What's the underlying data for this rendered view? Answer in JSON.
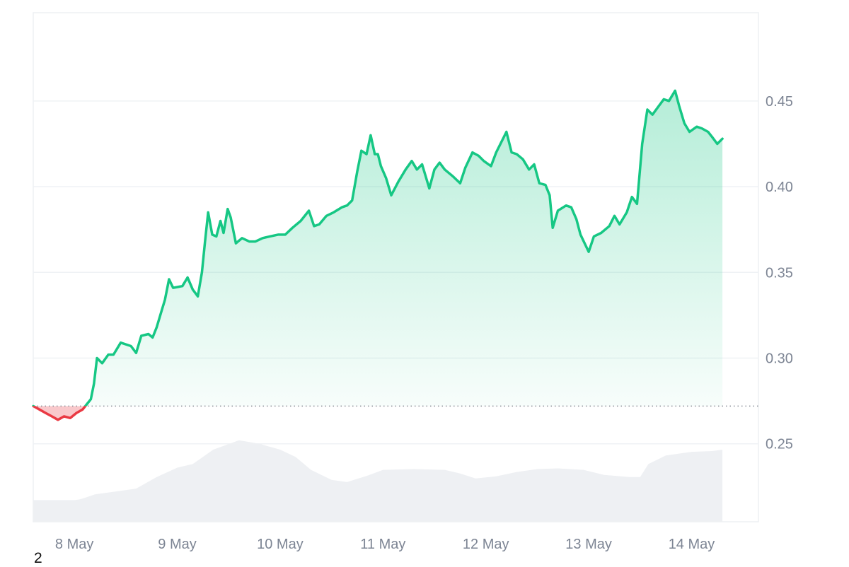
{
  "chart_data": {
    "type": "line",
    "baseline": 0.272,
    "ylim": [
      0.2045,
      0.5015
    ],
    "y_ticks": [
      0.25,
      0.3,
      0.35,
      0.4,
      0.45
    ],
    "y_tick_labels": [
      "0.25",
      "0.30",
      "0.35",
      "0.40",
      "0.45"
    ],
    "x_range": [
      7.6,
      14.65
    ],
    "x_ticks": [
      8,
      9,
      10,
      11,
      12,
      13,
      14
    ],
    "x_tick_labels": [
      "8 May",
      "9 May",
      "10 May",
      "11 May",
      "12 May",
      "13 May",
      "14 May"
    ],
    "colors": {
      "up": "#16c784",
      "down": "#ea3943",
      "volume": "#eef0f3",
      "grid": "#eff2f5",
      "tick": "#7d8594"
    },
    "series": [
      {
        "points": [
          [
            7.6,
            0.272
          ],
          [
            7.66,
            0.27
          ],
          [
            7.72,
            0.268
          ],
          [
            7.78,
            0.266
          ],
          [
            7.84,
            0.264
          ],
          [
            7.9,
            0.266
          ],
          [
            7.96,
            0.265
          ],
          [
            8.02,
            0.268
          ],
          [
            8.08,
            0.27
          ],
          [
            8.12,
            0.273
          ],
          [
            8.16,
            0.276
          ],
          [
            8.19,
            0.285
          ],
          [
            8.22,
            0.3
          ],
          [
            8.27,
            0.297
          ],
          [
            8.33,
            0.302
          ],
          [
            8.38,
            0.302
          ],
          [
            8.45,
            0.309
          ],
          [
            8.55,
            0.307
          ],
          [
            8.6,
            0.303
          ],
          [
            8.65,
            0.313
          ],
          [
            8.72,
            0.314
          ],
          [
            8.76,
            0.312
          ],
          [
            8.8,
            0.318
          ],
          [
            8.85,
            0.328
          ],
          [
            8.88,
            0.334
          ],
          [
            8.92,
            0.346
          ],
          [
            8.96,
            0.341
          ],
          [
            9.05,
            0.342
          ],
          [
            9.1,
            0.347
          ],
          [
            9.15,
            0.34
          ],
          [
            9.2,
            0.336
          ],
          [
            9.24,
            0.35
          ],
          [
            9.27,
            0.368
          ],
          [
            9.3,
            0.385
          ],
          [
            9.34,
            0.372
          ],
          [
            9.38,
            0.371
          ],
          [
            9.42,
            0.38
          ],
          [
            9.45,
            0.373
          ],
          [
            9.49,
            0.387
          ],
          [
            9.52,
            0.382
          ],
          [
            9.57,
            0.367
          ],
          [
            9.63,
            0.37
          ],
          [
            9.7,
            0.368
          ],
          [
            9.76,
            0.368
          ],
          [
            9.83,
            0.37
          ],
          [
            9.9,
            0.371
          ],
          [
            9.98,
            0.372
          ],
          [
            10.05,
            0.372
          ],
          [
            10.12,
            0.376
          ],
          [
            10.2,
            0.38
          ],
          [
            10.28,
            0.386
          ],
          [
            10.33,
            0.377
          ],
          [
            10.38,
            0.378
          ],
          [
            10.45,
            0.383
          ],
          [
            10.52,
            0.385
          ],
          [
            10.6,
            0.388
          ],
          [
            10.65,
            0.389
          ],
          [
            10.7,
            0.392
          ],
          [
            10.75,
            0.409
          ],
          [
            10.79,
            0.421
          ],
          [
            10.84,
            0.419
          ],
          [
            10.88,
            0.43
          ],
          [
            10.92,
            0.419
          ],
          [
            10.95,
            0.419
          ],
          [
            10.98,
            0.412
          ],
          [
            11.03,
            0.405
          ],
          [
            11.08,
            0.395
          ],
          [
            11.15,
            0.403
          ],
          [
            11.22,
            0.41
          ],
          [
            11.28,
            0.415
          ],
          [
            11.33,
            0.41
          ],
          [
            11.38,
            0.413
          ],
          [
            11.45,
            0.399
          ],
          [
            11.5,
            0.41
          ],
          [
            11.55,
            0.414
          ],
          [
            11.6,
            0.41
          ],
          [
            11.68,
            0.406
          ],
          [
            11.75,
            0.402
          ],
          [
            11.8,
            0.411
          ],
          [
            11.87,
            0.42
          ],
          [
            11.93,
            0.418
          ],
          [
            11.98,
            0.415
          ],
          [
            12.05,
            0.412
          ],
          [
            12.1,
            0.42
          ],
          [
            12.2,
            0.432
          ],
          [
            12.25,
            0.42
          ],
          [
            12.3,
            0.419
          ],
          [
            12.36,
            0.416
          ],
          [
            12.42,
            0.41
          ],
          [
            12.47,
            0.413
          ],
          [
            12.52,
            0.402
          ],
          [
            12.58,
            0.401
          ],
          [
            12.62,
            0.395
          ],
          [
            12.65,
            0.376
          ],
          [
            12.7,
            0.386
          ],
          [
            12.78,
            0.389
          ],
          [
            12.83,
            0.388
          ],
          [
            12.88,
            0.381
          ],
          [
            12.92,
            0.372
          ],
          [
            13.0,
            0.362
          ],
          [
            13.05,
            0.371
          ],
          [
            13.12,
            0.373
          ],
          [
            13.2,
            0.377
          ],
          [
            13.25,
            0.383
          ],
          [
            13.3,
            0.378
          ],
          [
            13.37,
            0.385
          ],
          [
            13.42,
            0.394
          ],
          [
            13.47,
            0.39
          ],
          [
            13.52,
            0.425
          ],
          [
            13.57,
            0.445
          ],
          [
            13.62,
            0.442
          ],
          [
            13.68,
            0.447
          ],
          [
            13.73,
            0.451
          ],
          [
            13.78,
            0.45
          ],
          [
            13.84,
            0.456
          ],
          [
            13.88,
            0.447
          ],
          [
            13.93,
            0.437
          ],
          [
            13.98,
            0.432
          ],
          [
            14.05,
            0.435
          ],
          [
            14.1,
            0.434
          ],
          [
            14.16,
            0.432
          ],
          [
            14.2,
            0.429
          ],
          [
            14.25,
            0.425
          ],
          [
            14.3,
            0.428
          ]
        ]
      }
    ],
    "volume": {
      "points": [
        [
          7.6,
          0.3
        ],
        [
          8.0,
          0.3
        ],
        [
          8.05,
          0.31
        ],
        [
          8.1,
          0.33
        ],
        [
          8.2,
          0.38
        ],
        [
          8.4,
          0.42
        ],
        [
          8.6,
          0.46
        ],
        [
          8.8,
          0.62
        ],
        [
          9.0,
          0.75
        ],
        [
          9.15,
          0.8
        ],
        [
          9.25,
          0.9
        ],
        [
          9.35,
          1.0
        ],
        [
          9.6,
          1.13
        ],
        [
          9.8,
          1.08
        ],
        [
          10.0,
          1.0
        ],
        [
          10.15,
          0.9
        ],
        [
          10.3,
          0.72
        ],
        [
          10.5,
          0.58
        ],
        [
          10.65,
          0.55
        ],
        [
          10.85,
          0.64
        ],
        [
          11.0,
          0.72
        ],
        [
          11.3,
          0.73
        ],
        [
          11.6,
          0.72
        ],
        [
          11.75,
          0.67
        ],
        [
          11.9,
          0.6
        ],
        [
          12.1,
          0.63
        ],
        [
          12.3,
          0.69
        ],
        [
          12.5,
          0.73
        ],
        [
          12.7,
          0.74
        ],
        [
          12.95,
          0.72
        ],
        [
          13.15,
          0.65
        ],
        [
          13.4,
          0.62
        ],
        [
          13.5,
          0.62
        ],
        [
          13.58,
          0.8
        ],
        [
          13.75,
          0.92
        ],
        [
          14.0,
          0.97
        ],
        [
          14.2,
          0.98
        ],
        [
          14.3,
          1.0
        ]
      ]
    }
  },
  "footer": {
    "corner_label": "2"
  }
}
